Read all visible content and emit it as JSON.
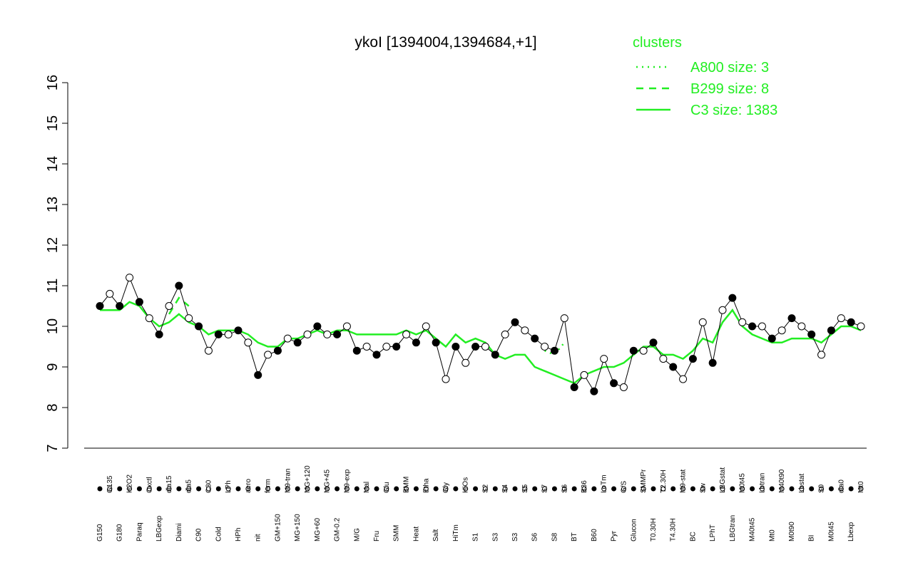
{
  "chart_data": {
    "type": "line",
    "title": "ykoI [1394004,1394684,+1]",
    "legend_title": "clusters",
    "legend_position": "top-right",
    "point_color": "#000000",
    "categories": [
      "G150",
      "G135",
      "G180",
      "H2O2",
      "Paraq",
      "Oxctl",
      "LBGexp",
      "dia15",
      "Diami",
      "dia5",
      "C90",
      "C30",
      "Cold",
      "LPh",
      "HPh",
      "aero",
      "nit",
      "ferm",
      "GM+150",
      "M9-tran",
      "MG+150",
      "MG+120",
      "MG+60",
      "MG+45",
      "GM-0.2",
      "M9-exp",
      "M/G",
      "Mal",
      "Fru",
      "Glu",
      "SMM",
      "BMM",
      "Heat",
      "Etha",
      "Salt",
      "Gly",
      "HiTm",
      "HiOs",
      "S1",
      "S2",
      "S3",
      "S4",
      "S3",
      "S5",
      "S6",
      "S7",
      "S8",
      "S6",
      "BT",
      "B36",
      "B60",
      "LoTm",
      "Pyr",
      "G/S",
      "Glucon",
      "SMMPr",
      "T0.30H",
      "T2.30H",
      "T4.30H",
      "M9-stat",
      "BC",
      "Sw",
      "LPhT",
      "LBGstat",
      "LBGtran",
      "M0t45",
      "M40t45",
      "Lbtran",
      "Mt0",
      "M40t90",
      "M0t90",
      "Lbstat",
      "BI",
      "S0",
      "M0t45",
      "dia0",
      "Lbexp",
      "Mt0"
    ],
    "values": [
      10.5,
      10.8,
      10.5,
      11.2,
      10.6,
      10.2,
      9.8,
      10.5,
      11.0,
      10.2,
      10.0,
      9.4,
      9.8,
      9.8,
      9.9,
      9.6,
      8.8,
      9.3,
      9.4,
      9.7,
      9.6,
      9.8,
      10.0,
      9.8,
      9.8,
      10.0,
      9.4,
      9.5,
      9.3,
      9.5,
      9.5,
      9.8,
      9.6,
      10.0,
      9.6,
      8.7,
      9.5,
      9.1,
      9.5,
      9.5,
      9.3,
      9.8,
      10.1,
      9.9,
      9.7,
      9.5,
      9.4,
      10.2,
      8.5,
      8.8,
      8.4,
      9.2,
      8.6,
      8.5,
      9.4,
      9.4,
      9.6,
      9.2,
      9.0,
      8.7,
      9.2,
      10.1,
      9.1,
      10.4,
      10.7,
      10.1,
      10.0,
      10.0,
      9.7,
      9.9,
      10.2,
      10.0,
      9.8,
      9.3,
      9.9,
      10.2,
      10.1,
      10.0
    ],
    "series": [
      {
        "name": "A800 size: 3",
        "color": "#22ee22",
        "dash": "dotted",
        "values": [
          null,
          null,
          null,
          null,
          null,
          null,
          null,
          null,
          null,
          null,
          null,
          null,
          null,
          null,
          null,
          null,
          null,
          null,
          null,
          null,
          null,
          null,
          null,
          null,
          null,
          null,
          null,
          null,
          null,
          null,
          null,
          null,
          null,
          null,
          null,
          null,
          null,
          null,
          null,
          null,
          null,
          null,
          null,
          null,
          null,
          9.4,
          9.3,
          9.6,
          null,
          null,
          null,
          null,
          null,
          null,
          null,
          null,
          null,
          null,
          null,
          null,
          null,
          null,
          null,
          null,
          null,
          null,
          null,
          null,
          null,
          null,
          null,
          null,
          null,
          null,
          null,
          null,
          null,
          null
        ]
      },
      {
        "name": "B299 size: 8",
        "color": "#22ee22",
        "dash": "dashed",
        "values": [
          null,
          null,
          null,
          null,
          null,
          null,
          null,
          10.3,
          10.7,
          10.5,
          null,
          null,
          null,
          null,
          null,
          null,
          null,
          null,
          null,
          null,
          null,
          null,
          null,
          null,
          null,
          null,
          null,
          null,
          null,
          null,
          null,
          null,
          null,
          null,
          null,
          null,
          null,
          null,
          null,
          null,
          null,
          null,
          null,
          null,
          null,
          null,
          null,
          null,
          null,
          null,
          null,
          null,
          null,
          null,
          null,
          null,
          null,
          null,
          null,
          null,
          null,
          null,
          null,
          null,
          null,
          null,
          null,
          null,
          null,
          null,
          null,
          null,
          null,
          null,
          null,
          null,
          null,
          null
        ]
      },
      {
        "name": "C3 size: 1383",
        "color": "#22ee22",
        "dash": "solid",
        "values": [
          10.4,
          10.4,
          10.4,
          10.6,
          10.5,
          10.2,
          10.0,
          10.1,
          10.3,
          10.1,
          10.0,
          9.8,
          9.9,
          9.9,
          9.9,
          9.8,
          9.6,
          9.5,
          9.5,
          9.7,
          9.7,
          9.8,
          9.9,
          9.8,
          9.9,
          9.9,
          9.8,
          9.8,
          9.8,
          9.8,
          9.8,
          9.9,
          9.8,
          9.9,
          9.7,
          9.5,
          9.8,
          9.6,
          9.7,
          9.6,
          9.3,
          9.2,
          9.3,
          9.3,
          9.0,
          8.9,
          8.8,
          8.7,
          8.6,
          8.8,
          8.9,
          9.0,
          9.0,
          9.1,
          9.3,
          9.5,
          9.5,
          9.3,
          9.3,
          9.2,
          9.4,
          9.7,
          9.6,
          10.1,
          10.4,
          10.0,
          9.8,
          9.7,
          9.6,
          9.6,
          9.7,
          9.7,
          9.7,
          9.6,
          9.8,
          10.0,
          10.0,
          9.9
        ]
      }
    ],
    "ylim": [
      7,
      16
    ],
    "yticks": [
      7,
      8,
      9,
      10,
      11,
      12,
      13,
      14,
      15,
      16
    ]
  }
}
